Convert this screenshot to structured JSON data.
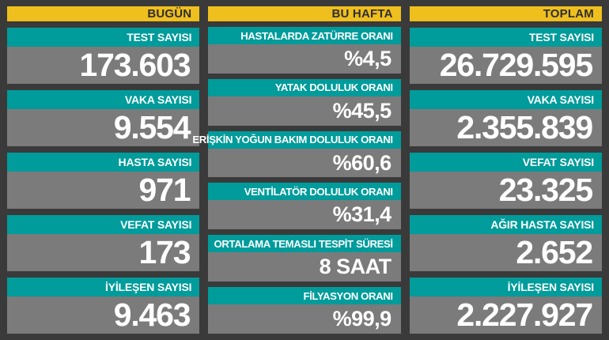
{
  "colors": {
    "background": "#3A3A3A",
    "header_yellow": "#EFBF1E",
    "label_teal": "#009B9B",
    "value_gray": "#7B7B7B",
    "header_text": "#2E2E2E",
    "value_text": "#FFFFFF"
  },
  "columns": [
    {
      "header": "BUGÜN",
      "cards": [
        {
          "label": "TEST SAYISI",
          "value": "173.603"
        },
        {
          "label": "VAKA SAYISI",
          "value": "9.554"
        },
        {
          "label": "HASTA SAYISI",
          "value": "971"
        },
        {
          "label": "VEFAT SAYISI",
          "value": "173"
        },
        {
          "label": "İYİLEŞEN SAYISI",
          "value": "9.463"
        }
      ]
    },
    {
      "header": "BU HAFTA",
      "cards": [
        {
          "label": "HASTALARDA ZATÜRRE ORANI",
          "value": "%4,5"
        },
        {
          "label": "YATAK DOLULUK ORANI",
          "value": "%45,5"
        },
        {
          "label": "ERİŞKİN YOĞUN BAKIM DOLULUK ORANI",
          "value": "%60,6"
        },
        {
          "label": "VENTİLATÖR DOLULUK ORANI",
          "value": "%31,4"
        },
        {
          "label": "ORTALAMA TEMASLI TESPİT SÜRESİ",
          "value": "8 SAAT"
        },
        {
          "label": "FİLYASYON ORANI",
          "value": "%99,9"
        }
      ]
    },
    {
      "header": "TOPLAM",
      "cards": [
        {
          "label": "TEST SAYISI",
          "value": "26.729.595"
        },
        {
          "label": "VAKA SAYISI",
          "value": "2.355.839"
        },
        {
          "label": "VEFAT SAYISI",
          "value": "23.325"
        },
        {
          "label": "AĞIR HASTA SAYISI",
          "value": "2.652"
        },
        {
          "label": "İYİLEŞEN SAYISI",
          "value": "2.227.927"
        }
      ]
    }
  ],
  "chart_data": [
    {
      "type": "table",
      "title": "BUGÜN",
      "rows": [
        [
          "TEST SAYISI",
          "173.603"
        ],
        [
          "VAKA SAYISI",
          "9.554"
        ],
        [
          "HASTA SAYISI",
          "971"
        ],
        [
          "VEFAT SAYISI",
          "173"
        ],
        [
          "İYİLEŞEN SAYISI",
          "9.463"
        ]
      ]
    },
    {
      "type": "table",
      "title": "BU HAFTA",
      "rows": [
        [
          "HASTALARDA ZATÜRRE ORANI",
          "%4,5"
        ],
        [
          "YATAK DOLULUK ORANI",
          "%45,5"
        ],
        [
          "ERİŞKİN YOĞUN BAKIM DOLULUK ORANI",
          "%60,6"
        ],
        [
          "VENTİLATÖR DOLULUK ORANI",
          "%31,4"
        ],
        [
          "ORTALAMA TEMASLI TESPİT SÜRESİ",
          "8 SAAT"
        ],
        [
          "FİLYASYON ORANI",
          "%99,9"
        ]
      ]
    },
    {
      "type": "table",
      "title": "TOPLAM",
      "rows": [
        [
          "TEST SAYISI",
          "26.729.595"
        ],
        [
          "VAKA SAYISI",
          "2.355.839"
        ],
        [
          "VEFAT SAYISI",
          "23.325"
        ],
        [
          "AĞIR HASTA SAYISI",
          "2.652"
        ],
        [
          "İYİLEŞEN SAYISI",
          "2.227.927"
        ]
      ]
    }
  ]
}
